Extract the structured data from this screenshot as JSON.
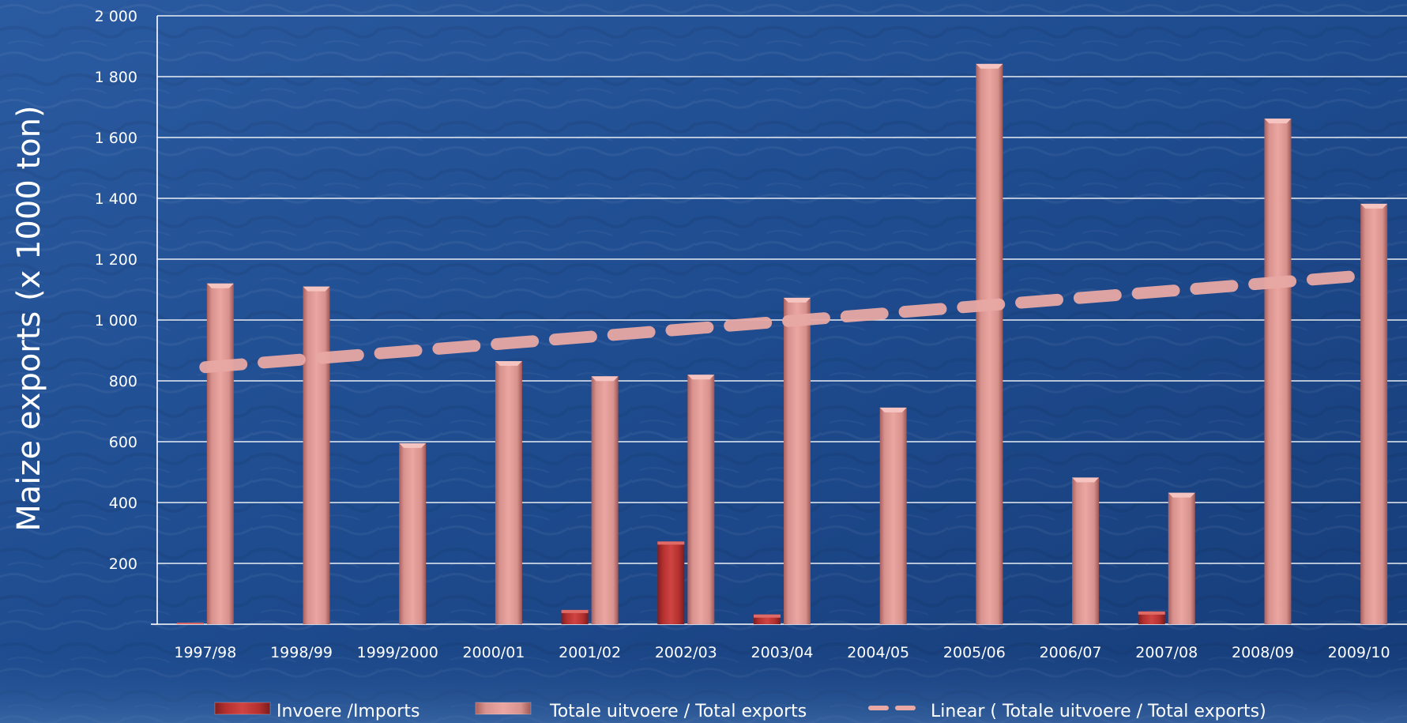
{
  "chart_data": {
    "type": "bar",
    "ylabel": "Maize exports (x 1000  ton)",
    "categories": [
      "1997/98",
      "1998/99",
      "1999/2000",
      "2000/01",
      "2001/02",
      "2002/03",
      "2003/04",
      "2004/05",
      "2005/06",
      "2006/07",
      "2007/08",
      "2008/09",
      "2009/10"
    ],
    "yticks": [
      "200",
      "400",
      "600",
      "800",
      "1 000",
      "1 200",
      "1 400",
      "1 600",
      "1 800",
      "2 000"
    ],
    "ylim": [
      0,
      2000
    ],
    "grid": true,
    "series": [
      {
        "name": "Invoere /Imports",
        "type": "bar",
        "color": "#c0383a",
        "values": [
          5,
          0,
          0,
          0,
          47,
          272,
          32,
          0,
          0,
          0,
          42,
          0,
          0
        ]
      },
      {
        "name": "Totale uitvoere /  Total exports",
        "type": "bar",
        "color": "#e89a96",
        "values": [
          1120,
          1110,
          595,
          865,
          815,
          820,
          1073,
          712,
          1842,
          482,
          432,
          1662,
          1382
        ]
      },
      {
        "name": "Linear (   Totale uitvoere /  Total exports)",
        "type": "line",
        "style": "dashed",
        "color": "#e8a8a4",
        "values": [
          845,
          870,
          895,
          920,
          945,
          970,
          995,
          1020,
          1045,
          1070,
          1095,
          1120,
          1145
        ]
      }
    ],
    "legend_position": "bottom"
  }
}
